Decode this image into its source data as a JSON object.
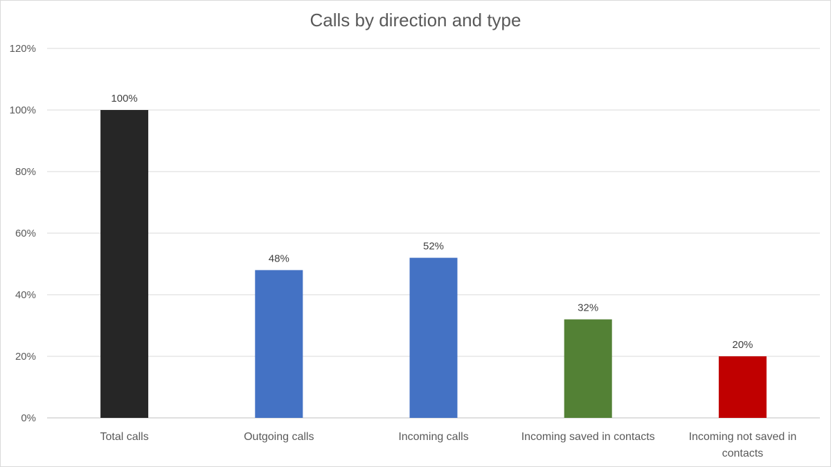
{
  "chart_data": {
    "type": "bar",
    "title": "Calls by direction and type",
    "xlabel": "",
    "ylabel": "",
    "categories": [
      [
        "Total calls"
      ],
      [
        "Outgoing calls"
      ],
      [
        "Incoming calls"
      ],
      [
        "Incoming saved in contacts"
      ],
      [
        "Incoming not saved in",
        "contacts"
      ]
    ],
    "values": [
      100,
      48,
      52,
      32,
      20
    ],
    "data_labels": [
      "100%",
      "48%",
      "52%",
      "32%",
      "20%"
    ],
    "colors": [
      "#262626",
      "#4472c4",
      "#4472c4",
      "#538135",
      "#c00000"
    ],
    "ylim": [
      0,
      120
    ],
    "y_ticks": [
      0,
      20,
      40,
      60,
      80,
      100,
      120
    ],
    "y_tick_labels": [
      "0%",
      "20%",
      "40%",
      "60%",
      "80%",
      "100%",
      "120%"
    ],
    "grid": true,
    "legend": "none"
  }
}
